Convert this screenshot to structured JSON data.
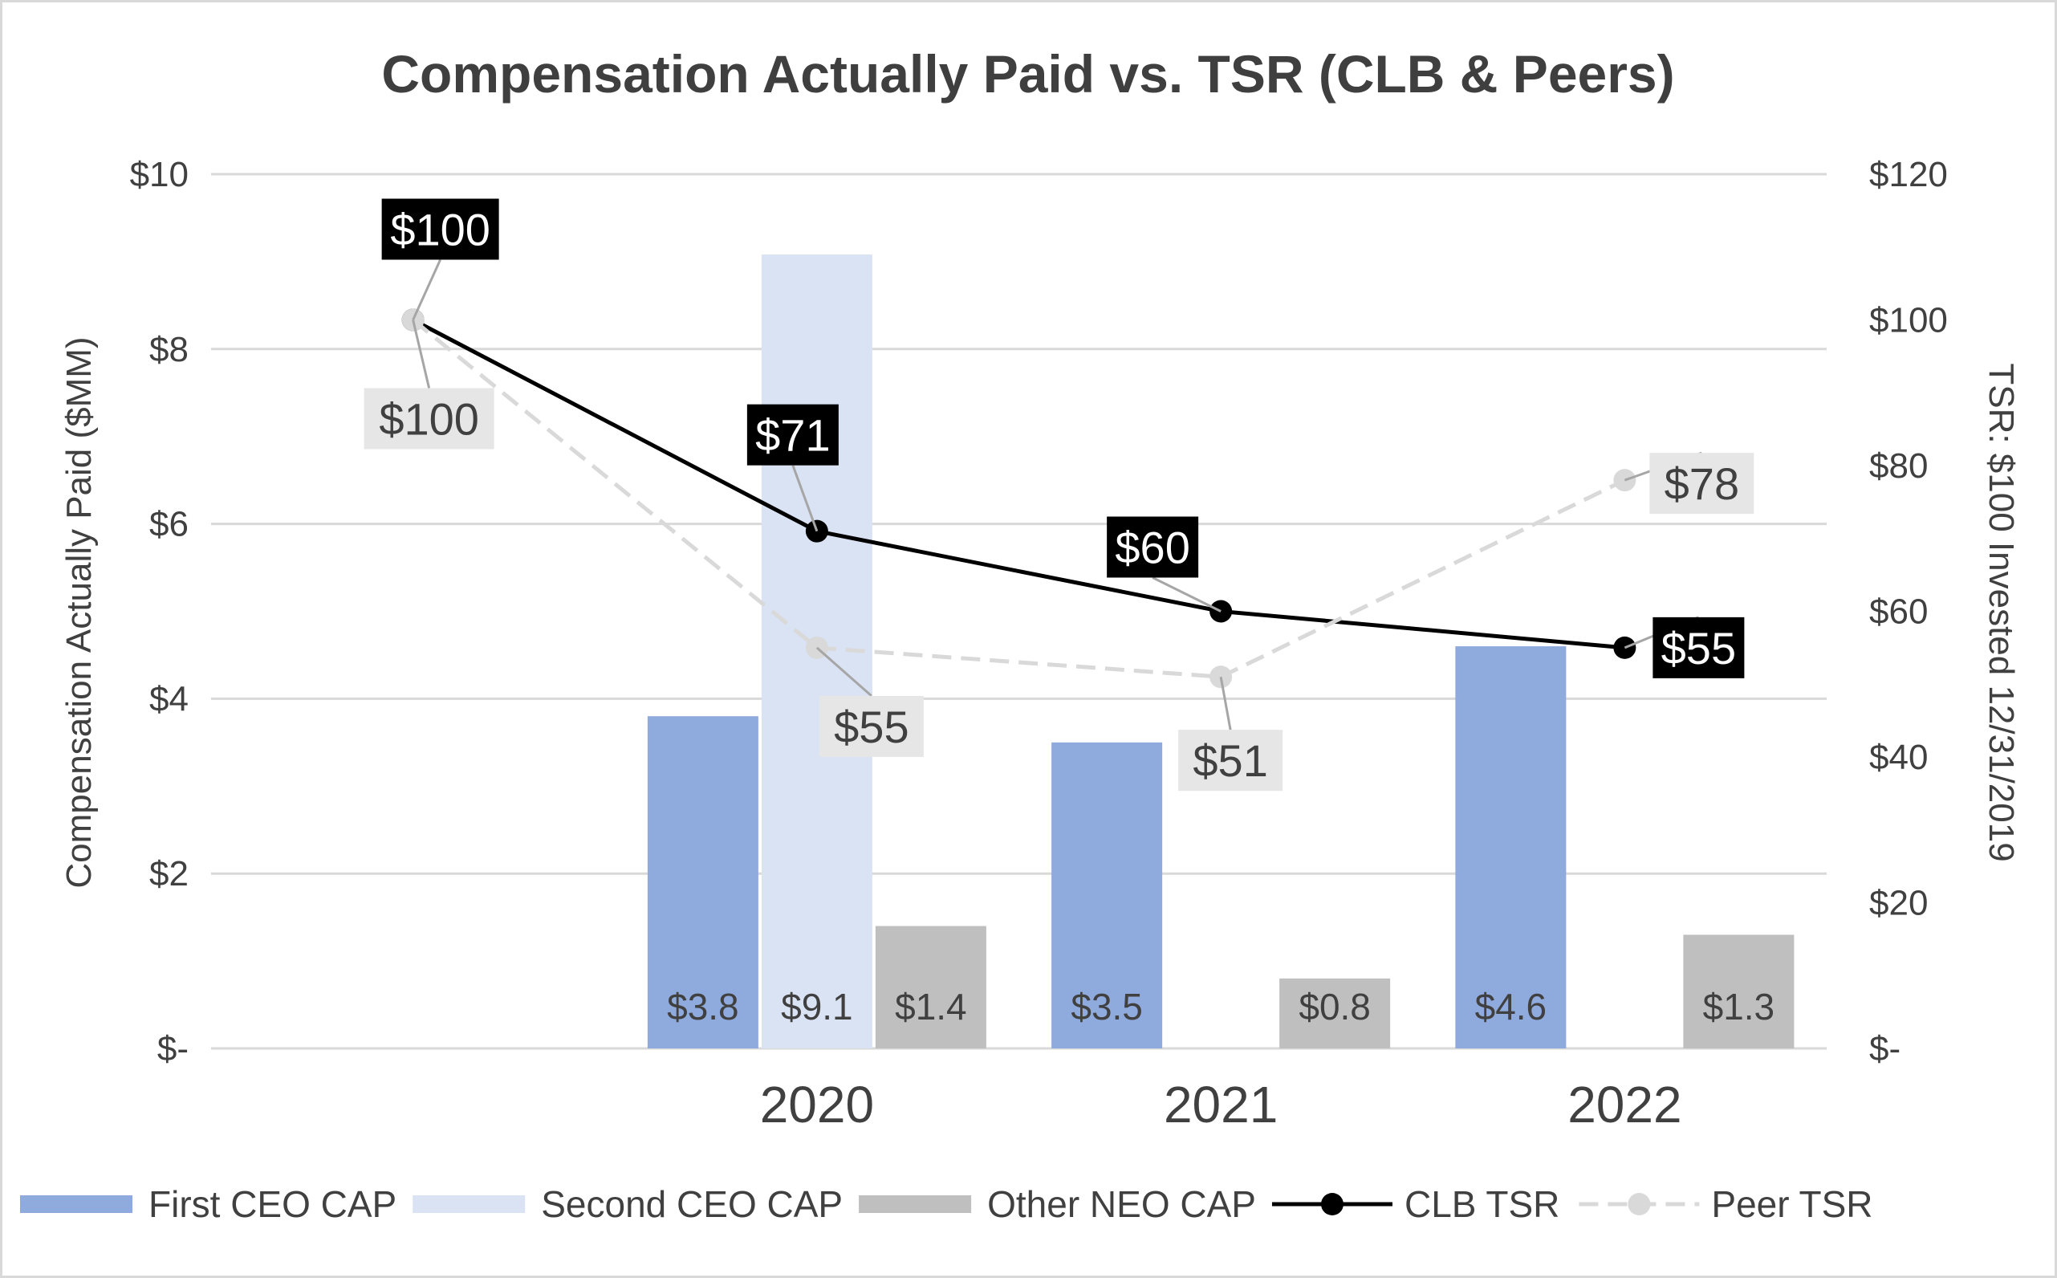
{
  "chart_data": {
    "type": "bar",
    "title": "Compensation Actually Paid vs. TSR (CLB & Peers)",
    "categories": [
      "",
      "2020",
      "2021",
      "2022"
    ],
    "y_left": {
      "label": "Compensation Actually Paid ($MM)",
      "range": [
        0,
        10
      ],
      "ticks": [
        "$-",
        "$2",
        "$4",
        "$6",
        "$8",
        "$10"
      ]
    },
    "y_right": {
      "label": "TSR: $100 Invested 12/31/2019",
      "range": [
        0,
        120
      ],
      "ticks": [
        "$-",
        "$20",
        "$40",
        "$60",
        "$80",
        "$100",
        "$120"
      ]
    },
    "grid": "horizontal",
    "legend_position": "bottom",
    "bar_series": [
      {
        "name": "First CEO CAP",
        "color": "#8faadc",
        "values": [
          null,
          3.8,
          3.5,
          4.6
        ],
        "labels": [
          "",
          "$3.8",
          "$3.5",
          "$4.6"
        ]
      },
      {
        "name": "Second CEO CAP",
        "color": "#dae3f3",
        "values": [
          null,
          9.1,
          null,
          null
        ],
        "labels": [
          "",
          "$9.1",
          "",
          ""
        ]
      },
      {
        "name": "Other NEO CAP",
        "color": "#bfbfbf",
        "values": [
          null,
          1.4,
          0.8,
          1.3
        ],
        "labels": [
          "",
          "$1.4",
          "$0.8",
          "$1.3"
        ]
      }
    ],
    "line_series": [
      {
        "name": "CLB TSR",
        "color": "#000000",
        "style": "solid",
        "values": [
          100,
          71,
          60,
          55
        ],
        "labels": [
          "$100",
          "$71",
          "$60",
          "$55"
        ]
      },
      {
        "name": "Peer TSR",
        "color": "#d9d9d9",
        "style": "dashed",
        "values": [
          100,
          55,
          51,
          78
        ],
        "labels": [
          "$100",
          "$55",
          "$51",
          "$78"
        ]
      }
    ]
  }
}
